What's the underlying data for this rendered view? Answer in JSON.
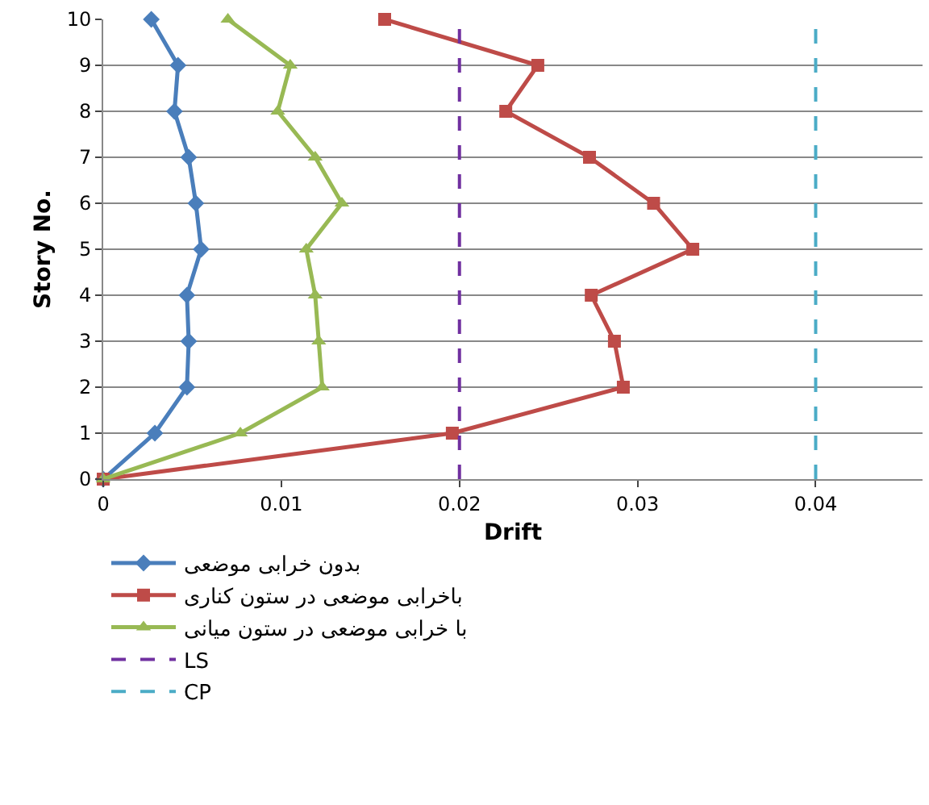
{
  "chart_data": {
    "type": "line",
    "xlabel": "Drift",
    "ylabel": "Story No.",
    "xlim": [
      0,
      0.046
    ],
    "xticks": [
      0,
      0.01,
      0.02,
      0.03,
      0.04
    ],
    "ylim": [
      0,
      10
    ],
    "yticks": [
      0,
      1,
      2,
      3,
      4,
      5,
      6,
      7,
      8,
      9,
      10
    ],
    "grid": "y",
    "legend": "bottom",
    "line_style": "solid",
    "series": [
      {
        "name": "بدون خرابی موضعی",
        "color": "#4a7ebb",
        "marker": "diamond",
        "x": [
          0,
          0.0029,
          0.0047,
          0.0048,
          0.0047,
          0.0055,
          0.0052,
          0.0048,
          0.004,
          0.0042,
          0.0027
        ],
        "values": [
          0,
          1,
          2,
          3,
          4,
          5,
          6,
          7,
          8,
          9,
          10
        ]
      },
      {
        "name": "باخرابی موضعی در ستون کناری",
        "color": "#be4b48",
        "marker": "square",
        "x": [
          0,
          0.0196,
          0.0292,
          0.0287,
          0.0274,
          0.0331,
          0.0309,
          0.0273,
          0.0226,
          0.0244,
          0.0158
        ],
        "values": [
          0,
          1,
          2,
          3,
          4,
          5,
          6,
          7,
          8,
          9,
          10
        ]
      },
      {
        "name": "با خرابی موضعی در ستون میانی",
        "color": "#98b954",
        "marker": "triangle",
        "x": [
          0,
          0.0077,
          0.0123,
          0.0121,
          0.0119,
          0.0114,
          0.0134,
          0.0119,
          0.0098,
          0.0105,
          0.007
        ],
        "values": [
          0,
          1,
          2,
          3,
          4,
          5,
          6,
          7,
          8,
          9,
          10
        ]
      }
    ],
    "ref_lines": [
      {
        "axis": "x",
        "value": 0.02,
        "label": "LS",
        "color": "#7030a0",
        "line_style": "dashed"
      },
      {
        "axis": "x",
        "value": 0.04,
        "label": "CP",
        "color": "#4bacc6",
        "line_style": "dashed"
      }
    ]
  }
}
